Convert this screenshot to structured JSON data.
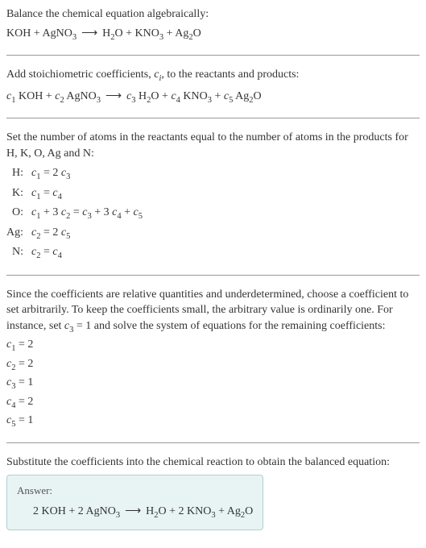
{
  "colors": {
    "text": "#333333",
    "hr": "#999999",
    "answer_bg": "#e8f4f4",
    "answer_border": "#b0d0d0",
    "answer_label": "#555555"
  },
  "typography": {
    "body_fontsize": 14,
    "sub_scale": 0.75,
    "answer_label_fontsize": 13,
    "font_family": "Georgia, Times New Roman, serif"
  },
  "section1": {
    "line1": "Balance the chemical equation algebraically:"
  },
  "eq1": {
    "lhs1": "KOH",
    "plus": " + ",
    "lhs2": "AgNO",
    "lhs2_sub": "3",
    "arrow": "⟶",
    "rhs1": "H",
    "rhs1_sub": "2",
    "rhs1b": "O",
    "rhs2": "KNO",
    "rhs2_sub": "3",
    "rhs3": "Ag",
    "rhs3_sub": "2",
    "rhs3b": "O"
  },
  "section2": {
    "line1a": "Add stoichiometric coefficients, ",
    "ci": "c",
    "ci_sub": "i",
    "line1b": ", to the reactants and products:"
  },
  "eq2": {
    "c1": "c",
    "c1_sub": "1",
    "sp1": " KOH",
    "c2": "c",
    "c2_sub": "2",
    "sp2": " AgNO",
    "sp2_sub": "3",
    "c3": "c",
    "c3_sub": "3",
    "sp3a": " H",
    "sp3a_sub": "2",
    "sp3b": "O",
    "c4": "c",
    "c4_sub": "4",
    "sp4": " KNO",
    "sp4_sub": "3",
    "c5": "c",
    "c5_sub": "5",
    "sp5a": " Ag",
    "sp5a_sub": "2",
    "sp5b": "O"
  },
  "section3": {
    "line1": "Set the number of atoms in the reactants equal to the number of atoms in the products for H, K, O, Ag and N:"
  },
  "atoms": [
    {
      "el": "H:",
      "c_l": "c",
      "l_sub": "1",
      "mid": " = 2 ",
      "c_r": "c",
      "r_sub": "3",
      "tail": ""
    },
    {
      "el": "K:",
      "c_l": "c",
      "l_sub": "1",
      "mid": " = ",
      "c_r": "c",
      "r_sub": "4",
      "tail": ""
    },
    {
      "el": "O:",
      "c_l": "c",
      "l_sub": "1",
      "mid": " + 3 ",
      "c_r": "c",
      "r_sub": "2",
      "tail_html": "O"
    },
    {
      "el": "Ag:",
      "c_l": "c",
      "l_sub": "2",
      "mid": " = 2 ",
      "c_r": "c",
      "r_sub": "5",
      "tail": ""
    },
    {
      "el": "N:",
      "c_l": "c",
      "l_sub": "2",
      "mid": " = ",
      "c_r": "c",
      "r_sub": "4",
      "tail": ""
    }
  ],
  "atom_O": {
    "el": "O:",
    "p1": "c",
    "p1s": "1",
    "t1": " + 3 ",
    "p2": "c",
    "p2s": "2",
    "t2": " = ",
    "p3": "c",
    "p3s": "3",
    "t3": " + 3 ",
    "p4": "c",
    "p4s": "4",
    "t4": " + ",
    "p5": "c",
    "p5s": "5"
  },
  "section4": {
    "text_a": "Since the coefficients are relative quantities and underdetermined, choose a coefficient to set arbitrarily. To keep the coefficients small, the arbitrary value is ordinarily one. For instance, set ",
    "c3": "c",
    "c3_sub": "3",
    "text_b": " = 1 and solve the system of equations for the remaining coefficients:"
  },
  "coeffs": [
    {
      "c": "c",
      "s": "1",
      "v": " = 2"
    },
    {
      "c": "c",
      "s": "2",
      "v": " = 2"
    },
    {
      "c": "c",
      "s": "3",
      "v": " = 1"
    },
    {
      "c": "c",
      "s": "4",
      "v": " = 2"
    },
    {
      "c": "c",
      "s": "5",
      "v": " = 1"
    }
  ],
  "section5": {
    "text": "Substitute the coefficients into the chemical reaction to obtain the balanced equation:"
  },
  "answer": {
    "label": "Answer:",
    "n1": "2 KOH",
    "plus": " + ",
    "n2": "2 AgNO",
    "n2_sub": "3",
    "arrow": "⟶",
    "r1a": "H",
    "r1a_sub": "2",
    "r1b": "O",
    "r2": "2 KNO",
    "r2_sub": "3",
    "r3a": "Ag",
    "r3a_sub": "2",
    "r3b": "O"
  }
}
